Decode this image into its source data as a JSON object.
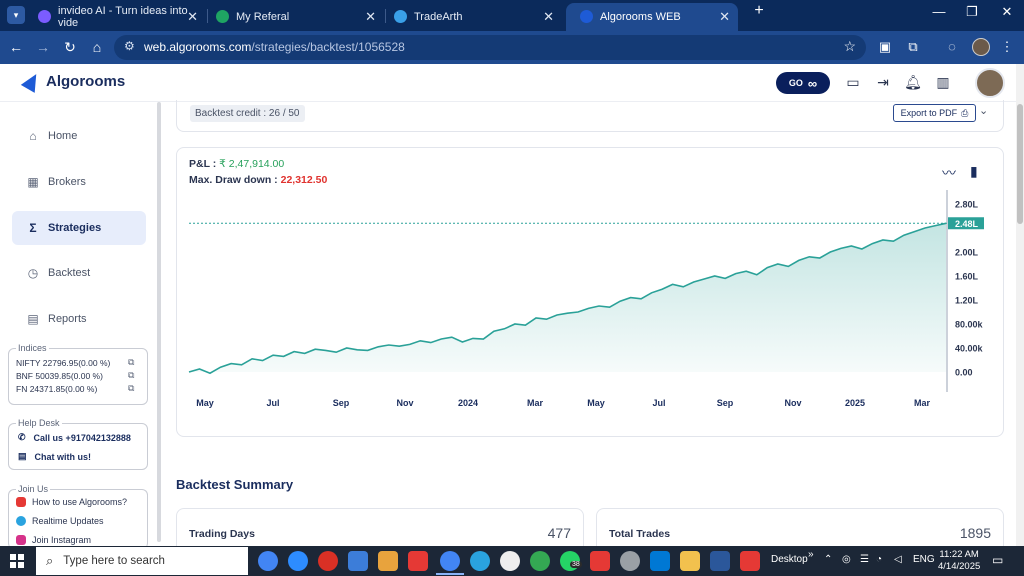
{
  "browser": {
    "tabs": [
      {
        "title": "invideo AI - Turn ideas into vide",
        "favicon_color": "#7b5cff"
      },
      {
        "title": "My Referal",
        "favicon_color": "#1fa463"
      },
      {
        "title": "TradeArth",
        "favicon_color": "#3aa0e8"
      },
      {
        "title": "Algorooms WEB",
        "favicon_color": "#1e5bd6"
      }
    ],
    "new_tab": "+",
    "url_domain": "web.algorooms.com",
    "url_path": "/strategies/backtest/1056528"
  },
  "app": {
    "brand": "Algorooms",
    "go_label": "GO",
    "go_icon": "∞"
  },
  "sidebar": {
    "items": [
      {
        "label": "Home",
        "icon": "⌂"
      },
      {
        "label": "Brokers",
        "icon": "▦"
      },
      {
        "label": "Strategies",
        "icon": "Σ"
      },
      {
        "label": "Backtest",
        "icon": "◷"
      },
      {
        "label": "Reports",
        "icon": "▤"
      }
    ],
    "indices_title": "Indices",
    "indices": [
      {
        "text": "NIFTY   22796.95(0.00 %)"
      },
      {
        "text": "BNF    50039.85(0.00 %)"
      },
      {
        "text": "FN    24371.85(0.00 %)"
      }
    ],
    "help_title": "Help Desk",
    "help": [
      {
        "text": "Call us +917042132888"
      },
      {
        "text": "Chat with us!"
      }
    ],
    "join_title": "Join Us",
    "join": [
      {
        "text": "How to use Algorooms?",
        "color": "#e53935"
      },
      {
        "text": "Realtime Updates",
        "color": "#2aa3df"
      },
      {
        "text": "Join Instagram",
        "color": "#d6338a"
      }
    ]
  },
  "backtest": {
    "credit": "Backtest credit : 26 / 50",
    "export_label": "Export to PDF",
    "pnl_label": "P&L :",
    "pnl_value": "₹ 2,47,914.00",
    "mdd_label": "Max. Draw down :",
    "mdd_value": "22,312.50",
    "summary_title": "Backtest Summary",
    "stats": [
      {
        "label": "Trading Days",
        "value": "477"
      },
      {
        "label": "Total Trades",
        "value": "1895"
      }
    ]
  },
  "chart_data": {
    "type": "area",
    "x_ticks": [
      "May",
      "Jul",
      "Sep",
      "Nov",
      "2024",
      "Mar",
      "May",
      "Jul",
      "Sep",
      "Nov",
      "2025",
      "Mar"
    ],
    "y_ticks": [
      "0.00",
      "40.00k",
      "80.00k",
      "1.20L",
      "1.60L",
      "2.00L",
      "2.48L",
      "2.80L"
    ],
    "y_tick_values": [
      0,
      40000,
      80000,
      120000,
      160000,
      200000,
      247914,
      280000
    ],
    "ylim": [
      0,
      280000
    ],
    "current_value_label": "2.48L",
    "current_value": 247914,
    "series_color": "#2aa198",
    "series": [
      {
        "values": [
          0,
          5000,
          -2000,
          8000,
          14000,
          12000,
          22000,
          19000,
          28000,
          26000,
          34000,
          31000,
          38000,
          36000,
          33000,
          40000,
          37000,
          36000,
          42000,
          45000,
          43000,
          46000,
          52000,
          49000,
          55000,
          58000,
          50000,
          56000,
          55000,
          68000,
          72000,
          80000,
          78000,
          90000,
          88000,
          95000,
          98000,
          100000,
          106000,
          110000,
          108000,
          118000,
          124000,
          122000,
          132000,
          138000,
          146000,
          142000,
          150000,
          155000,
          160000,
          156000,
          164000,
          168000,
          162000,
          174000,
          180000,
          176000,
          186000,
          192000,
          190000,
          200000,
          206000,
          210000,
          205000,
          214000,
          220000,
          218000,
          228000,
          234000,
          240000,
          244000,
          247914
        ]
      }
    ]
  },
  "taskbar": {
    "search_placeholder": "Type here to search",
    "desktop_label": "Desktop",
    "lang": "ENG",
    "time": "11:22 AM",
    "date": "4/14/2025",
    "badge": "38"
  }
}
